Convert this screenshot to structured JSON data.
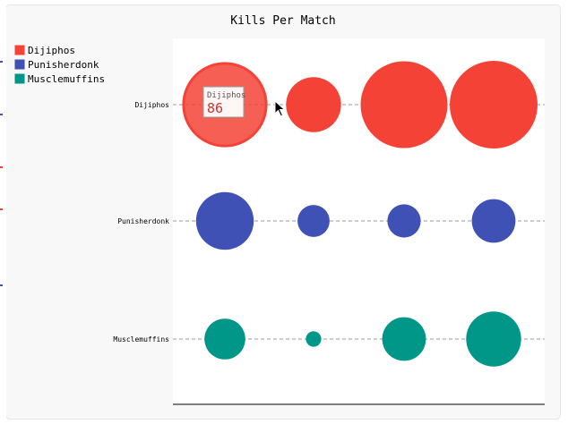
{
  "chart_data": {
    "type": "scatter",
    "subtype": "bubble-dot",
    "title": "Kills Per Match",
    "xlabel": "",
    "ylabel": "",
    "grid": "dashed-horizontal",
    "legend_position": "top-left",
    "x": [
      1,
      2,
      3,
      4
    ],
    "series": [
      {
        "name": "Dijiphos",
        "color": "#f44336",
        "values": [
          86,
          38,
          95,
          97
        ]
      },
      {
        "name": "Punisherdonk",
        "color": "#3f51b5",
        "values": [
          42,
          13,
          14,
          24
        ]
      },
      {
        "name": "Musclemuffins",
        "color": "#009688",
        "values": [
          21,
          3,
          24,
          38
        ]
      }
    ],
    "tooltip": {
      "series": "Dijiphos",
      "value": "86"
    }
  },
  "colors": {
    "background": "#f8f8f8",
    "plot_background": "#ffffff",
    "axis": "#000000",
    "guide": "#999999",
    "text": "#000000"
  }
}
